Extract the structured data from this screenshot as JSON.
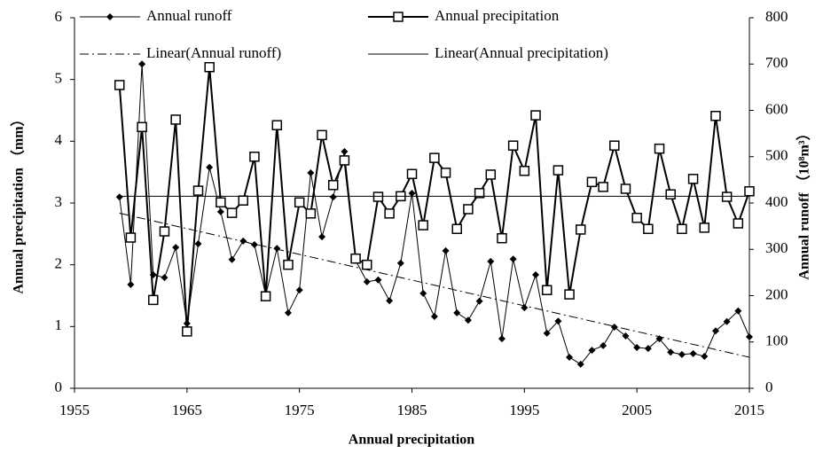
{
  "chart_data": {
    "type": "line",
    "xlabel": "Annual precipitation",
    "ylabel": "Annual precipitation （mm）",
    "y2label": "Annual runoff （10⁸m³）",
    "x": [
      1959,
      1960,
      1961,
      1962,
      1963,
      1964,
      1965,
      1966,
      1967,
      1968,
      1969,
      1970,
      1971,
      1972,
      1973,
      1974,
      1975,
      1976,
      1977,
      1978,
      1979,
      1980,
      1981,
      1982,
      1983,
      1984,
      1985,
      1986,
      1987,
      1988,
      1989,
      1990,
      1991,
      1992,
      1993,
      1994,
      1995,
      1996,
      1997,
      1998,
      1999,
      2000,
      2001,
      2002,
      2003,
      2004,
      2005,
      2006,
      2007,
      2008,
      2009,
      2010,
      2011,
      2012,
      2013,
      2014,
      2015
    ],
    "xlim": [
      1955,
      2015
    ],
    "xticks": [
      1955,
      1965,
      1975,
      1985,
      1995,
      2005,
      2015
    ],
    "ylim": [
      0,
      6
    ],
    "yticks": [
      0,
      1,
      2,
      3,
      4,
      5,
      6
    ],
    "y2lim": [
      0,
      800
    ],
    "y2ticks": [
      0,
      100,
      200,
      300,
      400,
      500,
      600,
      700,
      800
    ],
    "legend": "top",
    "series": [
      {
        "name": "Annual runoff",
        "color": "#000000",
        "axis": "y2",
        "marker": "diamond",
        "width": 1,
        "values": [
          413,
          224,
          700,
          245,
          239,
          304,
          140,
          312,
          477,
          381,
          278,
          318,
          310,
          201,
          302,
          163,
          212,
          465,
          327,
          413,
          511,
          276,
          230,
          234,
          189,
          270,
          421,
          205,
          155,
          297,
          163,
          147,
          188,
          274,
          107,
          279,
          174,
          245,
          119,
          145,
          67,
          52,
          82,
          92,
          132,
          113,
          88,
          86,
          107,
          78,
          73,
          75,
          69,
          124,
          144,
          167,
          111
        ]
      },
      {
        "name": "Annual precipitation",
        "color": "#000000",
        "axis": "y",
        "marker": "square",
        "width": 2,
        "values": [
          4.91,
          2.44,
          4.23,
          1.43,
          2.54,
          4.35,
          0.92,
          3.2,
          5.2,
          3.01,
          2.84,
          3.04,
          3.75,
          1.49,
          4.26,
          2.0,
          3.01,
          2.83,
          4.1,
          3.29,
          3.69,
          2.1,
          2.0,
          3.1,
          2.83,
          3.11,
          3.47,
          2.64,
          3.73,
          3.49,
          2.58,
          2.9,
          3.16,
          3.46,
          2.43,
          3.93,
          3.52,
          4.42,
          1.59,
          3.53,
          1.52,
          2.57,
          3.34,
          3.26,
          3.93,
          3.23,
          2.76,
          2.58,
          3.88,
          3.14,
          2.58,
          3.39,
          2.6,
          4.41,
          3.1,
          2.67,
          3.19
        ]
      },
      {
        "name": "Linear(Annual runoff)",
        "color": "#000000",
        "axis": "y2",
        "dash": "dashdot",
        "width": 1,
        "x": [
          1959,
          2015
        ],
        "values": [
          378,
          67
        ]
      },
      {
        "name": "Linear(Annual precipitation)",
        "color": "#000000",
        "axis": "y",
        "width": 1,
        "x": [
          1959,
          2015
        ],
        "values": [
          3.11,
          3.11
        ]
      }
    ]
  }
}
